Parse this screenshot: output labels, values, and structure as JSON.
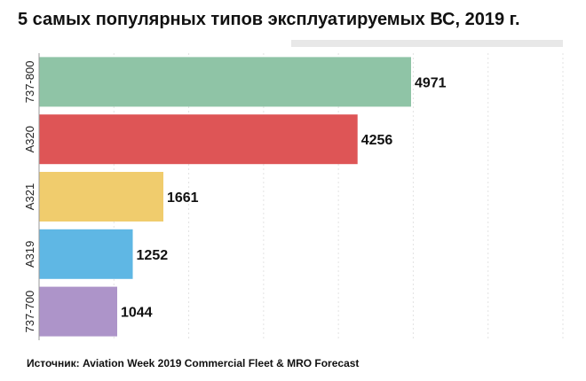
{
  "title": "5 самых популярных типов эксплуатируемых ВС, 2019 г.",
  "source": "Источник: Aviation Week 2019 Commercial Fleet & MRO Forecast",
  "chart_data": {
    "type": "bar",
    "orientation": "horizontal",
    "title": "5 самых популярных типов эксплуатируемых ВС, 2019 г.",
    "categories": [
      "737-800",
      "A320",
      "A321",
      "A319",
      "737-700"
    ],
    "values": [
      4971,
      4256,
      1661,
      1252,
      1044
    ],
    "colors": [
      "#8fc4a6",
      "#de5556",
      "#f0cc6d",
      "#5fb7e4",
      "#ad94c9"
    ],
    "xlim": [
      0,
      7000
    ],
    "grid": true,
    "legend": "none",
    "xlabel": "",
    "ylabel": ""
  }
}
